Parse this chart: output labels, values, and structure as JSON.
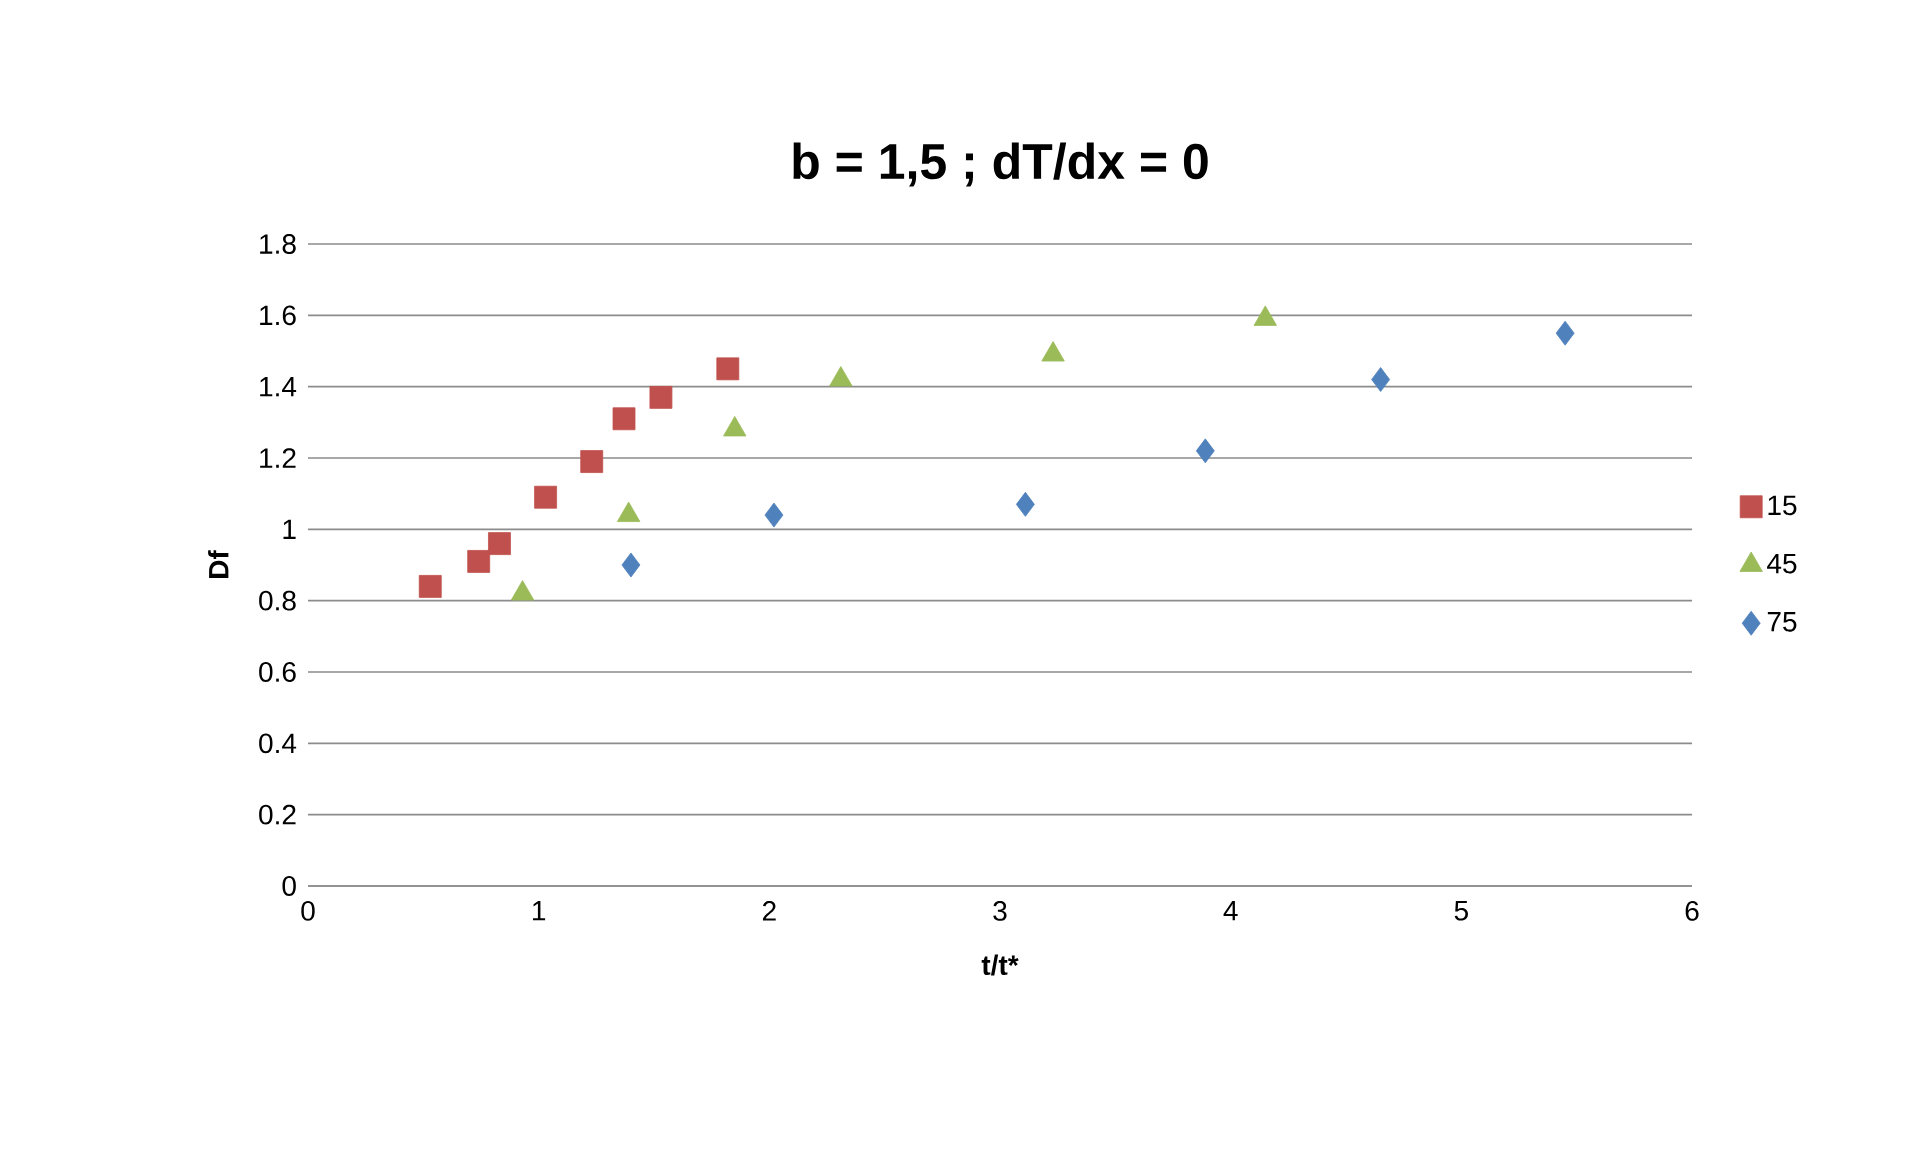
{
  "chart_data": {
    "type": "scatter",
    "title": "b = 1,5 ; dT/dx = 0",
    "xlabel": "t/t*",
    "ylabel": "Df",
    "xlim": [
      0,
      6
    ],
    "xticks": [
      0,
      1,
      2,
      3,
      4,
      5,
      6
    ],
    "ylim": [
      0,
      1.8
    ],
    "yticks": [
      0,
      0.2,
      0.4,
      0.6,
      0.8,
      1,
      1.2,
      1.4,
      1.6,
      1.8
    ],
    "grid": "y",
    "legend": "right",
    "series": [
      {
        "name": "15",
        "color": "#c0504d",
        "marker": "square",
        "x": [
          0.53,
          0.74,
          0.83,
          1.03,
          1.23,
          1.37,
          1.53,
          1.82
        ],
        "values": [
          0.84,
          0.91,
          0.96,
          1.09,
          1.19,
          1.31,
          1.37,
          1.45
        ]
      },
      {
        "name": "45",
        "color": "#9bbb59",
        "marker": "triangle",
        "x": [
          0.93,
          1.39,
          1.85,
          2.31,
          3.23,
          4.15
        ],
        "values": [
          0.82,
          1.04,
          1.28,
          1.42,
          1.49,
          1.59
        ]
      },
      {
        "name": "75",
        "color": "#4f81bd",
        "marker": "diamond",
        "x": [
          1.4,
          2.02,
          3.11,
          3.89,
          4.65,
          5.45
        ],
        "values": [
          0.9,
          1.04,
          1.07,
          1.22,
          1.42,
          1.55
        ]
      }
    ]
  }
}
